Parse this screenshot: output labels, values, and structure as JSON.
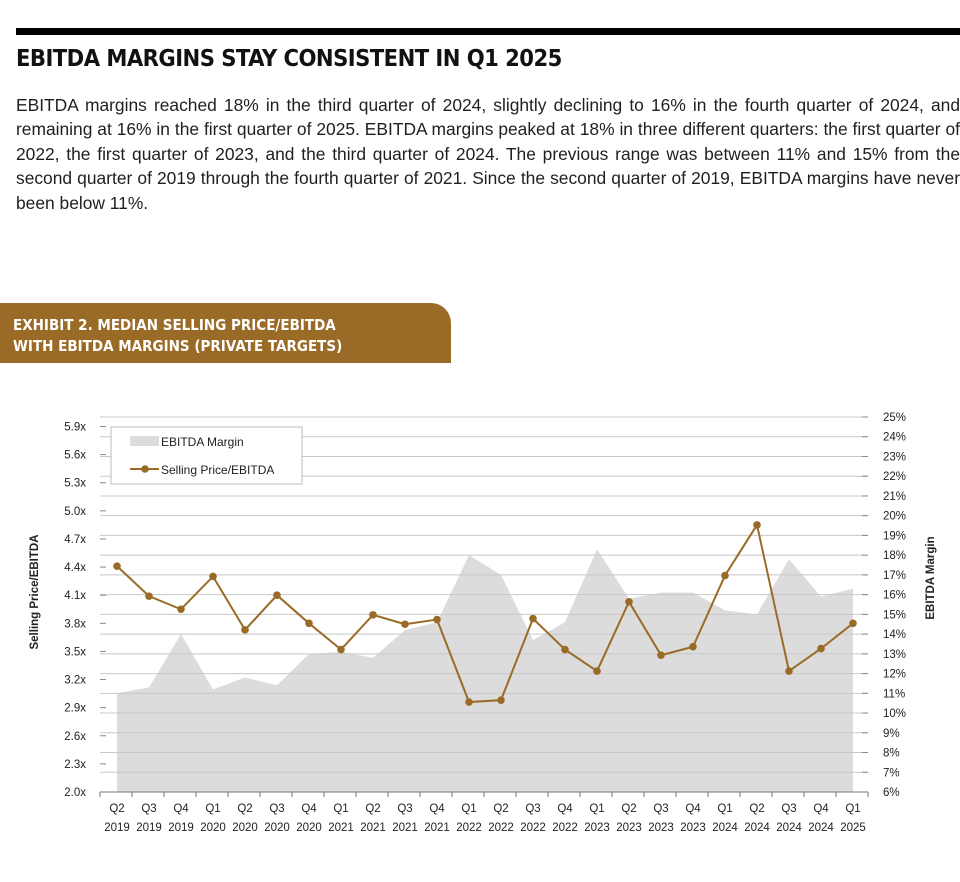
{
  "article": {
    "headline": "EBITDA MARGINS STAY CONSISTENT IN Q1 2025",
    "body": "EBITDA margins reached 18% in the third quarter of 2024, slightly declining to 16% in the fourth quarter of 2024, and remaining at 16% in the first quarter of 2025. EBITDA margins peaked at 18% in three different quarters: the first quarter of 2022, the first quarter of 2023, and the third quarter of 2024. The previous range was between 11% and 15% from the second quarter of 2019 through the fourth quarter of 2021. Since the second quarter of 2019, EBITDA margins have never been below 11%."
  },
  "exhibit": {
    "line1": "EXHIBIT 2. MEDIAN SELLING PRICE/EBITDA",
    "line2": "WITH EBITDA MARGINS (PRIVATE TARGETS)"
  },
  "colors": {
    "accent": "#9a6b27",
    "area": "#dcdcdc",
    "line": "#9a6b27",
    "grid": "#c8c8c8"
  },
  "chart_data": {
    "type": "line",
    "title": "Median Selling Price/EBITDA with EBITDA Margins (Private Targets)",
    "ylabel": "Selling Price/EBITDA",
    "y2label": "EBITDA Margin",
    "ylim": [
      2.0,
      5.9
    ],
    "y2lim": [
      6,
      25
    ],
    "yticks": [
      "2.0x",
      "2.3x",
      "2.6x",
      "2.9x",
      "3.2x",
      "3.5x",
      "3.8x",
      "4.1x",
      "4.4x",
      "4.7x",
      "5.0x",
      "5.3x",
      "5.6x",
      "5.9x"
    ],
    "y2ticks": [
      "6%",
      "7%",
      "8%",
      "9%",
      "10%",
      "11%",
      "12%",
      "13%",
      "14%",
      "15%",
      "16%",
      "17%",
      "18%",
      "19%",
      "20%",
      "21%",
      "22%",
      "23%",
      "24%",
      "25%"
    ],
    "categories": [
      {
        "q": "Q2",
        "y": "2019"
      },
      {
        "q": "Q3",
        "y": "2019"
      },
      {
        "q": "Q4",
        "y": "2019"
      },
      {
        "q": "Q1",
        "y": "2020"
      },
      {
        "q": "Q2",
        "y": "2020"
      },
      {
        "q": "Q3",
        "y": "2020"
      },
      {
        "q": "Q4",
        "y": "2020"
      },
      {
        "q": "Q1",
        "y": "2021"
      },
      {
        "q": "Q2",
        "y": "2021"
      },
      {
        "q": "Q3",
        "y": "2021"
      },
      {
        "q": "Q4",
        "y": "2021"
      },
      {
        "q": "Q1",
        "y": "2022"
      },
      {
        "q": "Q2",
        "y": "2022"
      },
      {
        "q": "Q3",
        "y": "2022"
      },
      {
        "q": "Q4",
        "y": "2022"
      },
      {
        "q": "Q1",
        "y": "2023"
      },
      {
        "q": "Q2",
        "y": "2023"
      },
      {
        "q": "Q3",
        "y": "2023"
      },
      {
        "q": "Q4",
        "y": "2023"
      },
      {
        "q": "Q1",
        "y": "2024"
      },
      {
        "q": "Q2",
        "y": "2024"
      },
      {
        "q": "Q3",
        "y": "2024"
      },
      {
        "q": "Q4",
        "y": "2024"
      },
      {
        "q": "Q1",
        "y": "2025"
      }
    ],
    "series": [
      {
        "name": "EBITDA Margin",
        "type": "area",
        "axis": "right",
        "values": [
          11.0,
          11.3,
          14.0,
          11.2,
          11.8,
          11.4,
          13.0,
          13.1,
          12.8,
          14.2,
          14.6,
          18.0,
          17.0,
          13.7,
          14.6,
          18.3,
          15.8,
          16.1,
          16.1,
          15.2,
          15.0,
          17.8,
          15.9,
          16.3
        ]
      },
      {
        "name": "Selling Price/EBITDA",
        "type": "line",
        "axis": "left",
        "values": [
          4.41,
          4.09,
          3.95,
          4.3,
          3.73,
          4.1,
          3.8,
          3.52,
          3.89,
          3.79,
          3.84,
          2.96,
          2.98,
          3.85,
          3.52,
          3.29,
          4.03,
          3.46,
          3.55,
          4.31,
          4.85,
          3.29,
          3.53,
          3.8
        ]
      }
    ],
    "legend": {
      "position": "top-left",
      "items": [
        "EBITDA Margin",
        "Selling Price/EBITDA"
      ]
    },
    "grid": true
  }
}
